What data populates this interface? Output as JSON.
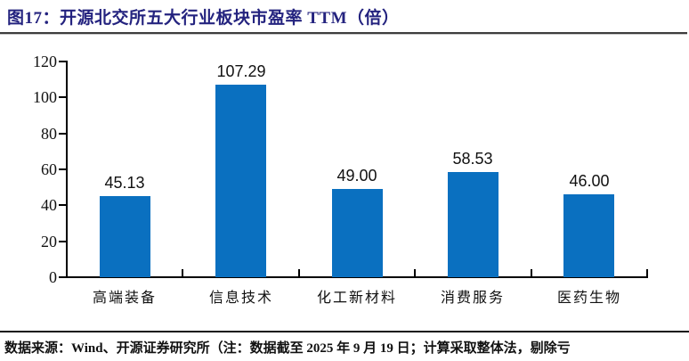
{
  "header": {
    "title": "图17：开源北交所五大行业板块市盈率 TTM（倍）"
  },
  "footer": {
    "source_note": "数据来源：Wind、开源证券研究所（注：数据截至 2025 年 9 月 19 日；计算采取整体法，剔除亏"
  },
  "colors": {
    "bar": "#0A70C0",
    "title": "#24237F",
    "axis": "#000000",
    "text": "#111111"
  },
  "chart_data": {
    "type": "bar",
    "title": "开源北交所五大行业板块市盈率 TTM（倍）",
    "categories": [
      "高端装备",
      "信息技术",
      "化工新材料",
      "消费服务",
      "医药生物"
    ],
    "values": [
      45.13,
      107.29,
      49.0,
      58.53,
      46.0
    ],
    "value_labels": [
      "45.13",
      "107.29",
      "49.00",
      "58.53",
      "46.00"
    ],
    "xlabel": "",
    "ylabel": "",
    "ylim": [
      0,
      120
    ],
    "yticks": [
      0,
      20,
      40,
      60,
      80,
      100,
      120
    ],
    "grid": false,
    "legend": "none"
  }
}
